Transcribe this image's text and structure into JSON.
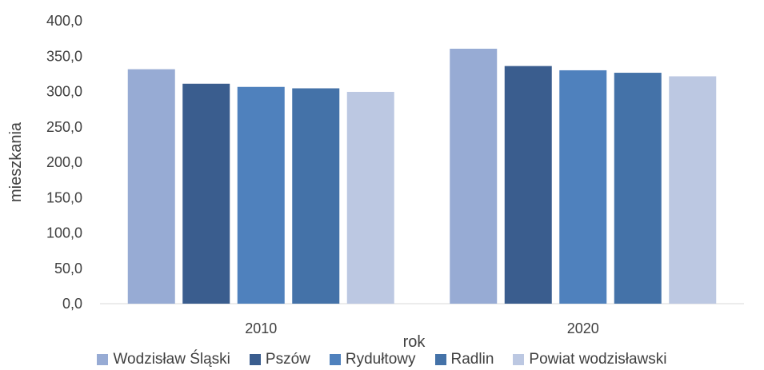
{
  "chart_data": {
    "type": "bar",
    "categories": [
      "2010",
      "2020"
    ],
    "series": [
      {
        "name": "Wodzisław Śląski",
        "values": [
          331.5,
          360.5
        ],
        "color": "#97ABD4"
      },
      {
        "name": "Pszów",
        "values": [
          311.0,
          336.0
        ],
        "color": "#3A5D8E"
      },
      {
        "name": "Rydułtowy",
        "values": [
          306.5,
          330.0
        ],
        "color": "#4F81BD"
      },
      {
        "name": "Radlin",
        "values": [
          304.5,
          326.5
        ],
        "color": "#4472A8"
      },
      {
        "name": "Powiat wodzisławski",
        "values": [
          299.5,
          321.5
        ],
        "color": "#BCC8E2"
      }
    ],
    "xlabel": "rok",
    "ylabel": "mieszkania",
    "ylim": [
      0,
      400
    ],
    "yticks": [
      "0,0",
      "50,0",
      "100,0",
      "150,0",
      "200,0",
      "250,0",
      "300,0",
      "350,0",
      "400,0"
    ],
    "grid": false,
    "legend_position": "bottom"
  }
}
